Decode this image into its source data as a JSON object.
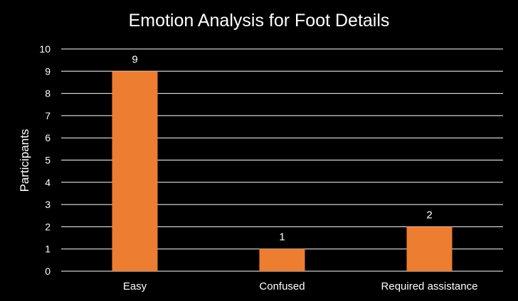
{
  "chart_data": {
    "type": "bar",
    "title": "Emotion Analysis for Foot Details",
    "xlabel": "",
    "ylabel": "Participants",
    "categories": [
      "Easy",
      "Confused",
      "Required assistance"
    ],
    "values": [
      9,
      1,
      2
    ],
    "data_labels": [
      "9",
      "1",
      "2"
    ],
    "ylim": [
      0,
      10
    ],
    "yticks": [
      "0",
      "1",
      "2",
      "3",
      "4",
      "5",
      "6",
      "7",
      "8",
      "9",
      "10"
    ],
    "grid": true,
    "legend": "none",
    "colors": {
      "background": "#000000",
      "bar": "#ED7D31",
      "gridline": "#FFFFFF",
      "text": "#FFFFFF"
    }
  }
}
